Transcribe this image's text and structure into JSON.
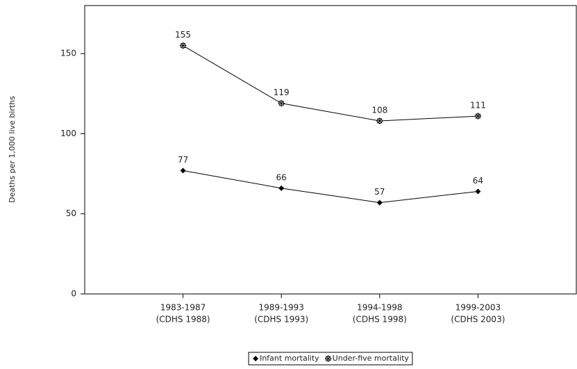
{
  "chart_data": {
    "type": "line",
    "ylabel": "Deaths per 1,000 live births",
    "categories": [
      [
        "1983-1987",
        "(CDHS 1988)"
      ],
      [
        "1989-1993",
        "(CDHS 1993)"
      ],
      [
        "1994-1998",
        "(CDHS 1998)"
      ],
      [
        "1999-2003",
        "(CDHS 2003)"
      ]
    ],
    "series": [
      {
        "name": "Infant mortality",
        "color": "#000000",
        "marker": "diamond",
        "values": [
          77,
          66,
          57,
          64
        ]
      },
      {
        "name": "Under-five mortality",
        "color": "#000000",
        "marker": "star",
        "values": [
          155,
          119,
          108,
          111
        ]
      }
    ],
    "ylim": [
      0,
      180
    ],
    "yticks": [
      0,
      50,
      100,
      150
    ],
    "legend": "bottom"
  }
}
